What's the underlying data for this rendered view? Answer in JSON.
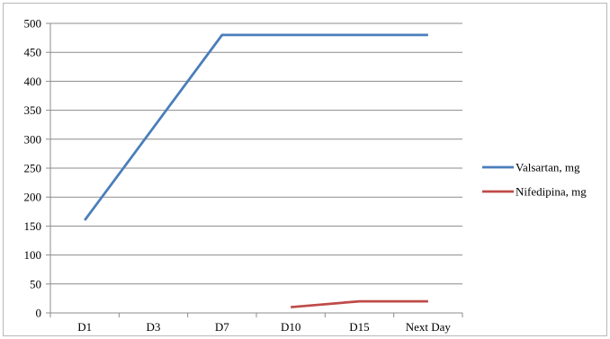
{
  "chart_data": {
    "type": "line",
    "title": "",
    "xlabel": "",
    "ylabel": "",
    "categories": [
      "D1",
      "D3",
      "D7",
      "D10",
      "D15",
      "Next Day"
    ],
    "ylim": [
      0,
      500
    ],
    "yticks": [
      "0",
      "50",
      "100",
      "150",
      "200",
      "250",
      "300",
      "350",
      "400",
      "450",
      "500"
    ],
    "grid": "horizontal",
    "legend_position": "right",
    "series": [
      {
        "name": "Valsartan, mg",
        "color": "#4a7ebb",
        "values": [
          160,
          null,
          480,
          480,
          480,
          480
        ]
      },
      {
        "name": "Nifedipina, mg",
        "color": "#be4b48",
        "values": [
          null,
          null,
          null,
          10,
          20,
          20
        ]
      }
    ]
  }
}
